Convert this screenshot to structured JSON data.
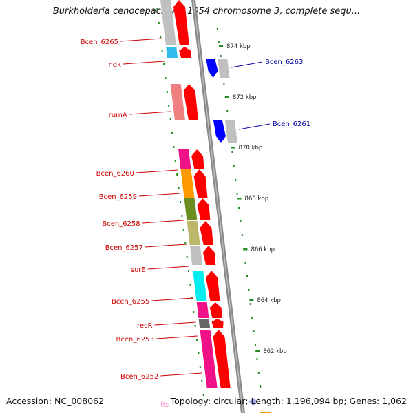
{
  "title": "Burkholderia cenocepacia AU 1054 chromosome 3, complete sequ...",
  "footer": {
    "accession": "Accession: NC_008062",
    "summary": "Topology: circular; Length: 1,196,094 bp; Genes: 1,062"
  },
  "colors": {
    "backbone": "#8a8a8a",
    "forward_cds": "#ff0000",
    "reverse_cds": "#0000ff",
    "tick": "#228b22",
    "label_forward": "#cc0000",
    "label_reverse": "#0000aa",
    "rna_label": "#ff88cc"
  },
  "kbp_ticks": [
    "874 kbp",
    "872 kbp",
    "870 kbp",
    "868 kbp",
    "866 kbp",
    "864 kbp",
    "862 kbp"
  ],
  "genes_left": [
    {
      "label": "Bcen_6265",
      "color": "#c0c0c0"
    },
    {
      "label": "ndk",
      "color": "#33bbee"
    },
    {
      "label": "rumA",
      "color": "#f08080"
    },
    {
      "label": "Bcen_6260",
      "color": "#ee1188"
    },
    {
      "label": "Bcen_6259",
      "color": "#ff9900"
    },
    {
      "label": "Bcen_6258",
      "color": "#6b8e23"
    },
    {
      "label": "Bcen_6257",
      "color": "#bdb76b"
    },
    {
      "label": "surE",
      "color": "#c0c0c0"
    },
    {
      "label": "Bcen_6255",
      "color": "#00eeee"
    },
    {
      "label": "recR",
      "color": "#ee1188"
    },
    {
      "label": "Bcen_6253",
      "color": "#666666"
    },
    {
      "label": "Bcen_6252",
      "color": "#ee1188"
    }
  ],
  "genes_right": [
    {
      "label": "Bcen_6263",
      "color": "#c0c0c0"
    },
    {
      "label": "Bcen_6261",
      "color": "#c0c0c0"
    }
  ],
  "rna_label": "ffs"
}
